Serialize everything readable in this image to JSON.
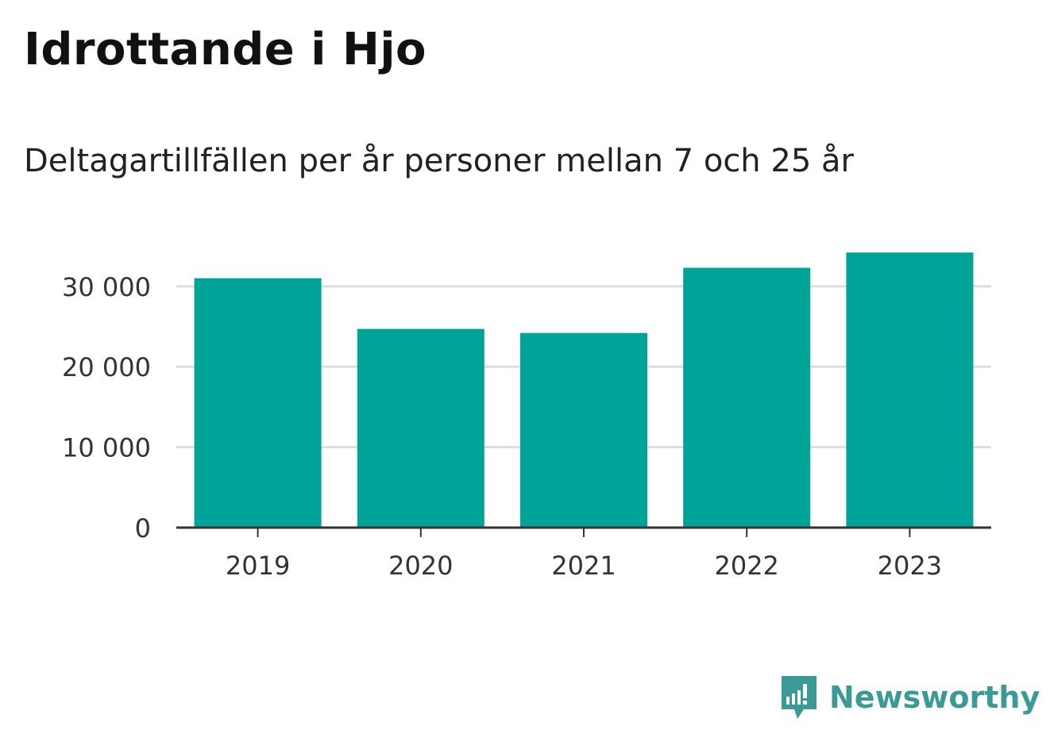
{
  "title": "Idrottande i Hjo",
  "subtitle": "Deltagartillfällen per år personer mellan 7 och 25 år",
  "brand": "Newsworthy",
  "colors": {
    "bar": "#00a398",
    "grid": "#dddddd",
    "axis": "#333333",
    "brand": "#3a9a96"
  },
  "chart_data": {
    "type": "bar",
    "categories": [
      "2019",
      "2020",
      "2021",
      "2022",
      "2023"
    ],
    "values": [
      31000,
      24700,
      24200,
      32300,
      34200
    ],
    "ylim": [
      0,
      36000
    ],
    "yticks": [
      0,
      10000,
      20000,
      30000
    ],
    "ytick_labels": [
      "0",
      "10 000",
      "20 000",
      "30 000"
    ],
    "grid": true
  }
}
